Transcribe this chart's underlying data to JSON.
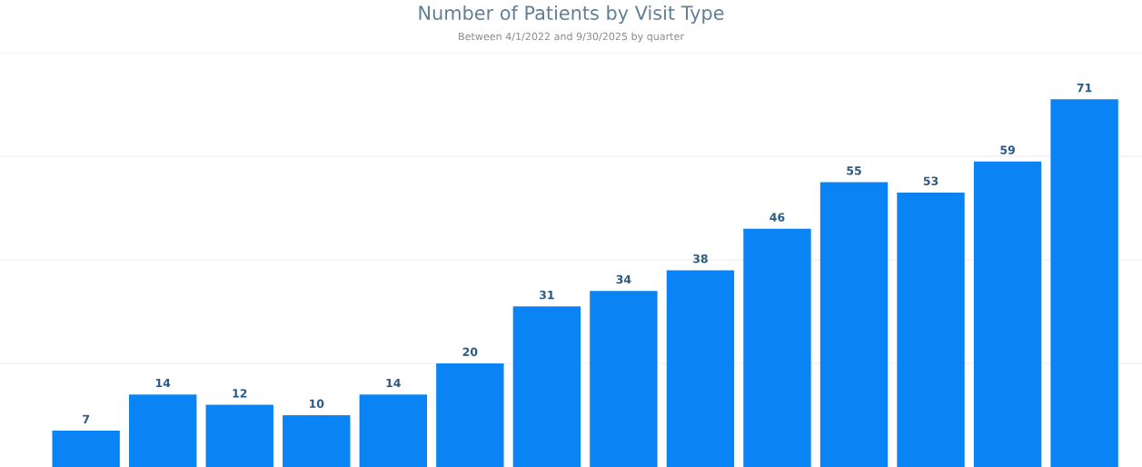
{
  "chart_data": {
    "type": "bar",
    "title": "Number of Patients by Visit Type",
    "subtitle": "Between 4/1/2022 and 9/30/2025 by quarter",
    "categories": [
      null,
      null,
      null,
      null,
      null,
      null,
      null,
      null,
      null,
      null,
      null,
      null,
      null,
      null
    ],
    "values": [
      7,
      14,
      12,
      10,
      14,
      20,
      31,
      34,
      38,
      46,
      55,
      53,
      59,
      71
    ],
    "color": "#0a84f5",
    "data_labels": true,
    "grid": "y",
    "yticks": [
      {
        "value": 20,
        "label": null
      },
      {
        "value": 40,
        "label": null
      },
      {
        "value": 60,
        "label": null
      },
      {
        "value": 80,
        "label": null
      }
    ]
  }
}
